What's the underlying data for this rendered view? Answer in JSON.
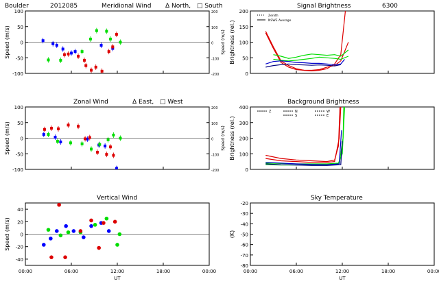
{
  "chart_data": [
    {
      "id": "meridional",
      "type": "scatter",
      "title_parts": [
        "Boulder",
        "2012085",
        "Meridional Wind",
        "Δ North,",
        "□ South"
      ],
      "ylabel": "Speed (m/s)",
      "ylabel_right": "Speed (m/s)",
      "xlim": [
        0,
        24
      ],
      "ylim": [
        -100,
        100
      ],
      "yticks": [
        "-100",
        "-50",
        "0",
        "50",
        "100"
      ],
      "ylim_right": [
        -200,
        200
      ],
      "yticks_right": [
        "-200",
        "-100",
        "0",
        "100",
        "200"
      ],
      "show_xlabels": false,
      "series": [
        {
          "color": "#0000ff",
          "points": [
            [
              2.3,
              5
            ],
            [
              3.6,
              -5
            ],
            [
              4.1,
              -10
            ],
            [
              4.9,
              -22
            ],
            [
              6.0,
              -35
            ],
            [
              6.5,
              -30
            ],
            [
              9.9,
              -10
            ],
            [
              11.4,
              -20
            ]
          ]
        },
        {
          "color": "#00dd00",
          "points": [
            [
              3.0,
              -57
            ],
            [
              4.6,
              -58
            ],
            [
              7.4,
              -30
            ],
            [
              8.5,
              10
            ],
            [
              9.3,
              37
            ],
            [
              10.6,
              35
            ],
            [
              11.1,
              10
            ],
            [
              12.4,
              0
            ]
          ]
        },
        {
          "color": "#dd0000",
          "points": [
            [
              5.1,
              -40
            ],
            [
              5.6,
              -38
            ],
            [
              6.9,
              -45
            ],
            [
              7.7,
              -58
            ],
            [
              7.9,
              -75
            ],
            [
              8.6,
              -90
            ],
            [
              9.2,
              -80
            ],
            [
              10.0,
              -93
            ],
            [
              10.9,
              -30
            ],
            [
              11.4,
              -15
            ],
            [
              11.9,
              25
            ]
          ]
        }
      ]
    },
    {
      "id": "zonal",
      "type": "scatter",
      "title_parts": [
        "Zonal Wind",
        "Δ East,",
        "□ West"
      ],
      "ylabel": "Speed (m/s)",
      "ylabel_right": "Speed (m/s)",
      "xlim": [
        0,
        24
      ],
      "ylim": [
        -100,
        100
      ],
      "yticks": [
        "-100",
        "-50",
        "0",
        "50",
        "100"
      ],
      "ylim_right": [
        -200,
        200
      ],
      "yticks_right": [
        "-200",
        "-100",
        "0",
        "100",
        "200"
      ],
      "show_xlabels": false,
      "series": [
        {
          "color": "#0000ff",
          "points": [
            [
              2.4,
              12
            ],
            [
              3.9,
              3
            ],
            [
              4.6,
              -12
            ],
            [
              8.1,
              -3
            ],
            [
              9.6,
              -22
            ],
            [
              10.4,
              -25
            ],
            [
              11.9,
              -97
            ]
          ]
        },
        {
          "color": "#00dd00",
          "points": [
            [
              3.0,
              12
            ],
            [
              4.2,
              -10
            ],
            [
              5.9,
              -15
            ],
            [
              7.4,
              -18
            ],
            [
              8.6,
              -35
            ],
            [
              9.7,
              -20
            ],
            [
              10.8,
              -5
            ],
            [
              11.5,
              10
            ],
            [
              12.4,
              0
            ]
          ]
        },
        {
          "color": "#dd0000",
          "points": [
            [
              2.5,
              28
            ],
            [
              3.4,
              32
            ],
            [
              4.3,
              30
            ],
            [
              5.6,
              42
            ],
            [
              6.9,
              38
            ],
            [
              7.8,
              -2
            ],
            [
              8.4,
              2
            ],
            [
              9.4,
              -45
            ],
            [
              10.6,
              -52
            ],
            [
              11.1,
              -28
            ],
            [
              11.5,
              -55
            ]
          ]
        }
      ]
    },
    {
      "id": "vertical",
      "type": "scatter",
      "title_parts": [
        "Vertical Wind"
      ],
      "ylabel": "Speed (m/s)",
      "xlabel": "UT",
      "xlim": [
        0,
        24
      ],
      "ylim": [
        -50,
        50
      ],
      "yticks": [
        "-40",
        "-20",
        "0",
        "20",
        "40"
      ],
      "show_xlabels": true,
      "series": [
        {
          "color": "#0000ff",
          "points": [
            [
              2.4,
              -17
            ],
            [
              3.3,
              -7
            ],
            [
              4.1,
              5
            ],
            [
              5.3,
              13
            ],
            [
              6.3,
              5
            ],
            [
              7.6,
              -5
            ],
            [
              8.6,
              13
            ],
            [
              9.9,
              18
            ],
            [
              10.9,
              5
            ]
          ]
        },
        {
          "color": "#00dd00",
          "points": [
            [
              3.0,
              7
            ],
            [
              4.6,
              -2
            ],
            [
              5.6,
              3
            ],
            [
              7.2,
              3
            ],
            [
              9.1,
              15
            ],
            [
              10.6,
              25
            ],
            [
              12.0,
              -17
            ],
            [
              12.3,
              0
            ]
          ]
        },
        {
          "color": "#dd0000",
          "points": [
            [
              3.4,
              -37
            ],
            [
              4.4,
              47
            ],
            [
              5.2,
              -37
            ],
            [
              7.2,
              5
            ],
            [
              8.6,
              22
            ],
            [
              9.6,
              -22
            ],
            [
              10.2,
              18
            ],
            [
              11.7,
              20
            ]
          ]
        }
      ]
    },
    {
      "id": "signal",
      "type": "line",
      "title_parts": [
        "Signal Brightness",
        "6300"
      ],
      "ylabel": "Brightness (rel.)",
      "xlim": [
        0,
        24
      ],
      "ylim": [
        0,
        200
      ],
      "yticks": [
        "0",
        "50",
        "100",
        "150",
        "200"
      ],
      "show_xlabels": false,
      "legend": [
        "Zenith",
        "NSWE Average"
      ],
      "series": [
        {
          "color": "#dd0000",
          "points": [
            [
              2.0,
              135
            ],
            [
              3.0,
              85
            ],
            [
              4.0,
              40
            ],
            [
              5.0,
              25
            ],
            [
              6.0,
              15
            ],
            [
              7.0,
              10
            ],
            [
              8.0,
              8
            ],
            [
              9.0,
              10
            ],
            [
              10.0,
              15
            ],
            [
              11.0,
              30
            ],
            [
              11.8,
              60
            ],
            [
              12.4,
              200
            ]
          ]
        },
        {
          "color": "#dd0000",
          "points": [
            [
              2.0,
              130
            ],
            [
              3.0,
              80
            ],
            [
              4.0,
              35
            ],
            [
              5.0,
              20
            ],
            [
              6.0,
              12
            ],
            [
              7.0,
              10
            ],
            [
              8.0,
              10
            ],
            [
              9.0,
              12
            ],
            [
              10.0,
              20
            ],
            [
              11.0,
              25
            ],
            [
              11.8,
              40
            ],
            [
              12.8,
              100
            ]
          ]
        },
        {
          "color": "#00dd00",
          "points": [
            [
              3.0,
              60
            ],
            [
              4.0,
              55
            ],
            [
              5.0,
              48
            ],
            [
              6.0,
              52
            ],
            [
              7.0,
              58
            ],
            [
              8.0,
              62
            ],
            [
              9.0,
              60
            ],
            [
              10.0,
              58
            ],
            [
              11.0,
              60
            ],
            [
              11.8,
              55
            ],
            [
              12.8,
              75
            ]
          ]
        },
        {
          "color": "#00dd00",
          "points": [
            [
              3.0,
              45
            ],
            [
              4.0,
              42
            ],
            [
              5.0,
              40
            ],
            [
              6.0,
              42
            ],
            [
              7.0,
              45
            ],
            [
              8.0,
              48
            ],
            [
              9.0,
              52
            ],
            [
              10.0,
              50
            ],
            [
              11.0,
              48
            ],
            [
              11.8,
              45
            ],
            [
              12.8,
              55
            ]
          ]
        },
        {
          "color": "#0000cc",
          "points": [
            [
              2.0,
              30
            ],
            [
              3.0,
              38
            ],
            [
              4.0,
              40
            ],
            [
              5.0,
              38
            ],
            [
              6.0,
              35
            ],
            [
              7.0,
              34
            ],
            [
              8.0,
              32
            ],
            [
              9.0,
              32
            ],
            [
              10.0,
              30
            ],
            [
              11.0,
              28
            ],
            [
              11.8,
              30
            ],
            [
              12.3,
              45
            ]
          ]
        },
        {
          "color": "#000080",
          "points": [
            [
              2.0,
              20
            ],
            [
              3.0,
              25
            ],
            [
              4.0,
              28
            ],
            [
              5.0,
              30
            ],
            [
              6.0,
              28
            ],
            [
              7.0,
              27
            ],
            [
              8.0,
              26
            ],
            [
              9.0,
              27
            ],
            [
              10.0,
              26
            ],
            [
              11.0,
              24
            ],
            [
              11.8,
              28
            ]
          ]
        }
      ]
    },
    {
      "id": "background",
      "type": "line",
      "title_parts": [
        "Background Brightness"
      ],
      "ylabel": "Brightness (rel.)",
      "xlim": [
        0,
        24
      ],
      "ylim": [
        0,
        400
      ],
      "yticks": [
        "0",
        "100",
        "200",
        "300",
        "400"
      ],
      "show_xlabels": false,
      "legend": [
        "Z",
        "N",
        "S",
        "W",
        "E"
      ],
      "series": [
        {
          "color": "#dd0000",
          "points": [
            [
              2.0,
              90
            ],
            [
              4.0,
              70
            ],
            [
              6.0,
              60
            ],
            [
              8.0,
              55
            ],
            [
              10.0,
              50
            ],
            [
              11.0,
              60
            ],
            [
              11.5,
              150
            ],
            [
              11.7,
              400
            ]
          ]
        },
        {
          "color": "#dd0000",
          "points": [
            [
              2.0,
              70
            ],
            [
              4.0,
              55
            ],
            [
              6.0,
              50
            ],
            [
              8.0,
              45
            ],
            [
              10.0,
              45
            ],
            [
              11.0,
              50
            ],
            [
              11.6,
              200
            ],
            [
              11.8,
              400
            ]
          ]
        },
        {
          "color": "#00dd00",
          "points": [
            [
              2.0,
              40
            ],
            [
              4.0,
              38
            ],
            [
              6.0,
              35
            ],
            [
              8.0,
              35
            ],
            [
              10.0,
              35
            ],
            [
              11.5,
              40
            ],
            [
              12.0,
              100
            ],
            [
              12.3,
              400
            ]
          ]
        },
        {
          "color": "#00dd00",
          "points": [
            [
              2.0,
              30
            ],
            [
              4.0,
              28
            ],
            [
              6.0,
              28
            ],
            [
              8.0,
              30
            ],
            [
              10.0,
              30
            ],
            [
              11.6,
              35
            ],
            [
              12.1,
              200
            ],
            [
              12.2,
              400
            ]
          ]
        },
        {
          "color": "#0000cc",
          "points": [
            [
              2.0,
              45
            ],
            [
              4.0,
              40
            ],
            [
              6.0,
              35
            ],
            [
              8.0,
              32
            ],
            [
              10.0,
              30
            ],
            [
              11.6,
              35
            ],
            [
              11.9,
              250
            ]
          ]
        },
        {
          "color": "#000080",
          "points": [
            [
              2.0,
              35
            ],
            [
              4.0,
              30
            ],
            [
              6.0,
              28
            ],
            [
              8.0,
              25
            ],
            [
              10.0,
              25
            ],
            [
              11.8,
              30
            ],
            [
              12.0,
              180
            ]
          ]
        }
      ]
    },
    {
      "id": "skytemp",
      "type": "line",
      "title_parts": [
        "Sky Temperature"
      ],
      "ylabel": "(K)",
      "xlabel": "UT",
      "xlim": [
        0,
        24
      ],
      "ylim": [
        -80,
        -20
      ],
      "yticks": [
        "-80",
        "-70",
        "-60",
        "-50",
        "-40",
        "-30",
        "-20"
      ],
      "show_xlabels": true,
      "series": []
    }
  ],
  "xtick_labels": [
    "00:00",
    "06:00",
    "12:00",
    "18:00",
    "00:00"
  ]
}
